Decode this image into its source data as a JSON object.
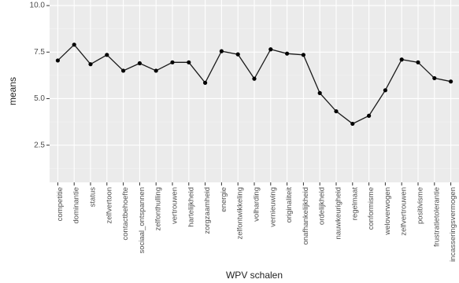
{
  "chart_data": {
    "type": "line",
    "xlabel": "WPV schalen",
    "ylabel": "means",
    "ylim": [
      0.5,
      10.3
    ],
    "yticks": [
      2.5,
      5.0,
      7.5,
      10.0
    ],
    "ytick_labels": [
      "2.5",
      "5.0",
      "7.5",
      "10.0"
    ],
    "grid": true,
    "colors": {
      "panel": "#ebebeb",
      "grid_major": "#ffffff",
      "grid_minor": "#f4f4f4",
      "line": "#1a1a1a"
    },
    "categories": [
      "competitie",
      "dominantie",
      "status",
      "zelfvertoon",
      "contactbehoefte",
      "sociaal_ontspannen",
      "zelfonthulling",
      "vertrouwen",
      "hartelijkheid",
      "zorgzaamheid",
      "energie",
      "zelfontwikkeling",
      "volharding",
      "vernieuwing",
      "originaliteit",
      "onafhankelijkheid",
      "ordelijkheid",
      "nauwkeurigheid",
      "regelmaat",
      "conformisme",
      "weloverwogen",
      "zelfvertrouwen",
      "positivisme",
      "frustratietolerantie",
      "incasseringsvermogen"
    ],
    "values": [
      7.05,
      7.9,
      6.85,
      7.35,
      6.5,
      6.9,
      6.5,
      6.95,
      6.95,
      5.85,
      7.55,
      7.38,
      6.07,
      7.65,
      7.42,
      7.35,
      5.3,
      4.32,
      3.65,
      4.08,
      5.45,
      7.1,
      6.95,
      6.1,
      5.92
    ]
  }
}
